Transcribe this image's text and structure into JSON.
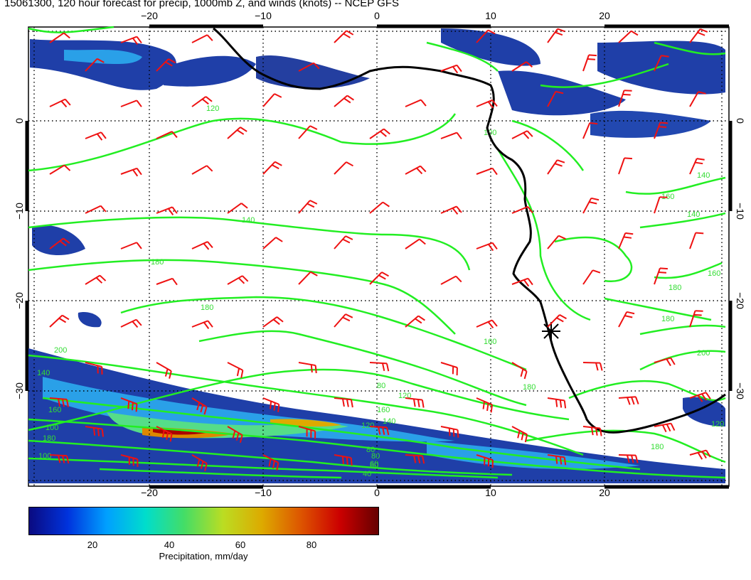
{
  "title": "15061300, 120 hour forecast for precip, 1000mb Z, and winds (knots) -- NCEP GFS",
  "map": {
    "lon_ticks": [
      "−20",
      "−10",
      "0",
      "10",
      "20"
    ],
    "lat_ticks": [
      "0",
      "−10",
      "−20",
      "−30"
    ],
    "contour_color": "#22ee22",
    "wind_barb_color": "#ee1111",
    "coast_color": "#000000",
    "contour_labels": [
      "120",
      "140",
      "160",
      "180",
      "180",
      "140",
      "160",
      "180",
      "200",
      "160",
      "140",
      "120",
      "100",
      "80",
      "60",
      "40",
      "180",
      "200",
      "140",
      "100",
      "180",
      "160",
      "140",
      "120",
      "100",
      "80",
      "180",
      "120",
      "160",
      "180",
      "80",
      "60"
    ]
  },
  "colorbar": {
    "ticks": [
      "20",
      "40",
      "60",
      "80"
    ],
    "label": "Precipitation, mm/day",
    "colors": [
      "#0a0a80",
      "#0033dd",
      "#00a0ff",
      "#00ddcc",
      "#44dd66",
      "#bbdd22",
      "#ddaa00",
      "#dd5500",
      "#cc0000",
      "#660000"
    ]
  }
}
